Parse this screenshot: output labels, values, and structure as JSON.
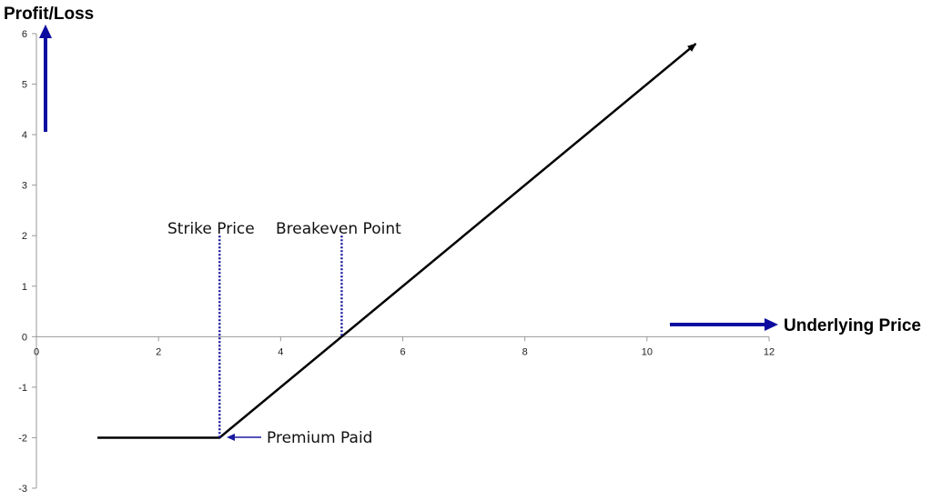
{
  "chart_data": {
    "type": "line",
    "title": "",
    "ylabel": "Profit/Loss",
    "xlabel": "Underlying Price",
    "xlim": [
      0,
      12
    ],
    "ylim": [
      -3,
      6
    ],
    "grid": false,
    "x_ticks": [
      "0",
      "2",
      "4",
      "6",
      "8",
      "10",
      "12"
    ],
    "y_ticks": [
      "-3",
      "-2",
      "-1",
      "0",
      "1",
      "2",
      "3",
      "4",
      "5",
      "6"
    ],
    "series": [
      {
        "x": [
          1,
          3,
          10.8
        ],
        "y": [
          -2,
          -2,
          5.8
        ],
        "color": "#000000"
      }
    ],
    "annotations": {
      "strike": {
        "label": "Strike Price",
        "x": 3,
        "y_from": -2,
        "y_to": 2
      },
      "breakeven": {
        "label": "Breakeven Point",
        "x": 5,
        "y_from": 0,
        "y_to": 2
      },
      "premium": {
        "label": "Premium Paid",
        "x": 3,
        "y": -2
      }
    },
    "accent_color": "#0c0ca0"
  }
}
